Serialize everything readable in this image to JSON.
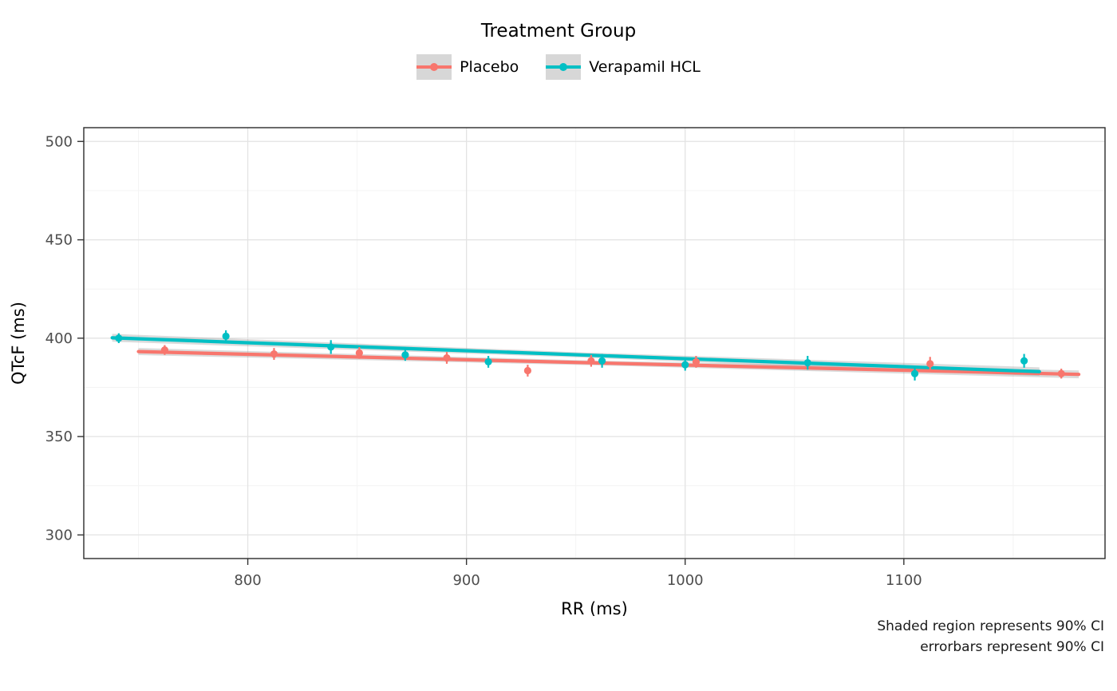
{
  "title": "Treatment Group",
  "legend": {
    "title": "Treatment Group",
    "entries": [
      {
        "label": "Placebo",
        "color": "#F8766D"
      },
      {
        "label": "Verapamil HCL",
        "color": "#00BFC4"
      }
    ],
    "key_background": "#d7d7d7"
  },
  "caption": {
    "line1": "Shaded region represents 90% CI",
    "line2": "errorbars represent 90% CI"
  },
  "chart_data": {
    "type": "scatter",
    "title": "Treatment Group",
    "xlabel": "RR (ms)",
    "ylabel": "QTcF (ms)",
    "xlim": [
      725,
      1192
    ],
    "ylim": [
      288,
      507
    ],
    "x_ticks": [
      800,
      900,
      1000,
      1100
    ],
    "y_ticks": [
      300,
      350,
      400,
      450,
      500
    ],
    "x_minor_ticks": [
      750,
      850,
      950,
      1050,
      1150
    ],
    "y_minor_ticks": [
      325,
      375,
      425,
      475
    ],
    "grid": true,
    "legend_position": "top",
    "ci_level": "90% CI",
    "band_color": "#999999",
    "band_opacity": 0.35,
    "panel_border_color": "#2b2b2b",
    "grid_major_color": "#e3e3e3",
    "grid_minor_color": "#f4f4f4",
    "tick_label_color": "#4d4d4d",
    "series": [
      {
        "name": "Placebo",
        "color": "#F8766D",
        "points": [
          {
            "x": 762,
            "y": 394,
            "ci": 2.5
          },
          {
            "x": 812,
            "y": 392,
            "ci": 3
          },
          {
            "x": 851,
            "y": 392.5,
            "ci": 3
          },
          {
            "x": 891,
            "y": 390,
            "ci": 3
          },
          {
            "x": 928,
            "y": 383.5,
            "ci": 3
          },
          {
            "x": 957,
            "y": 388.5,
            "ci": 3
          },
          {
            "x": 1005,
            "y": 388,
            "ci": 3
          },
          {
            "x": 1112,
            "y": 387,
            "ci": 3.5
          },
          {
            "x": 1172,
            "y": 382,
            "ci": 2.5
          }
        ],
        "trend": {
          "x": [
            750,
            960,
            1180
          ],
          "y": [
            393.2,
            387.4,
            381.6
          ],
          "ci_halfwidth": [
            1.8,
            1.2,
            2.0
          ]
        }
      },
      {
        "name": "Verapamil HCL",
        "color": "#00BFC4",
        "points": [
          {
            "x": 741,
            "y": 400,
            "ci": 2.5
          },
          {
            "x": 790,
            "y": 401,
            "ci": 3
          },
          {
            "x": 838,
            "y": 395.5,
            "ci": 3.5
          },
          {
            "x": 872,
            "y": 391.5,
            "ci": 3
          },
          {
            "x": 910,
            "y": 388,
            "ci": 3
          },
          {
            "x": 962,
            "y": 388.5,
            "ci": 3.5
          },
          {
            "x": 1000,
            "y": 386.5,
            "ci": 3
          },
          {
            "x": 1056,
            "y": 387.5,
            "ci": 3.5
          },
          {
            "x": 1105,
            "y": 382,
            "ci": 3.5
          },
          {
            "x": 1155,
            "y": 388.5,
            "ci": 3.5
          }
        ],
        "trend": {
          "x": [
            738,
            950,
            1162
          ],
          "y": [
            400.2,
            391.6,
            383.0
          ],
          "ci_halfwidth": [
            2.0,
            1.3,
            2.2
          ]
        }
      }
    ]
  }
}
